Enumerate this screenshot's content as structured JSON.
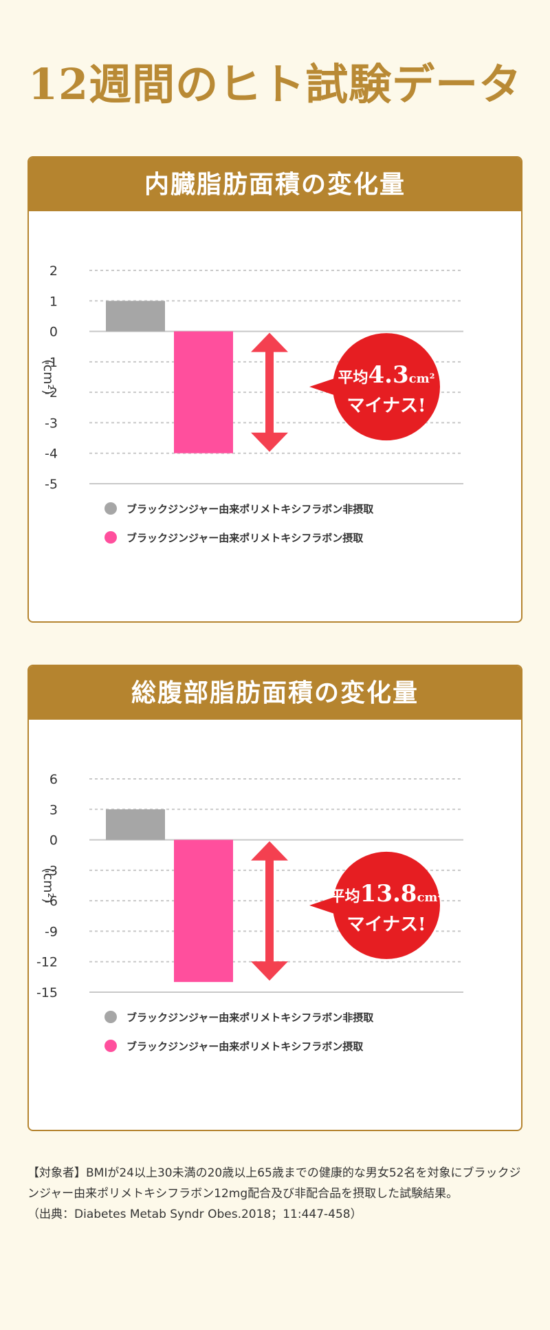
{
  "page": {
    "title": "12週間のヒト試験データ"
  },
  "colors": {
    "gold": "#b5842f",
    "gray_bar": "#a6a6a6",
    "pink_bar": "#ff4f9d",
    "red_callout": "#e61e22",
    "arrow": "#f44050"
  },
  "chart_data": [
    {
      "type": "bar",
      "title": "内臓脂肪面積の変化量",
      "ylabel": "(cm²)",
      "ylim": [
        -5,
        2
      ],
      "yticks": [
        2,
        1,
        0,
        -1,
        -2,
        -3,
        -4,
        -5
      ],
      "grid": true,
      "series": [
        {
          "name": "ブラックジンジャー由来ポリメトキシフラボン非摂取",
          "values": [
            1
          ],
          "color": "#a6a6a6"
        },
        {
          "name": "ブラックジンジャー由来ポリメトキシフラボン摂取",
          "values": [
            -4
          ],
          "color": "#ff4f9d"
        }
      ],
      "callout": {
        "prefix": "平均",
        "value": "4.3",
        "unit": "cm²",
        "line2": "マイナス!"
      },
      "legend_position": "bottom-left"
    },
    {
      "type": "bar",
      "title": "総腹部脂肪面積の変化量",
      "ylabel": "(cm²)",
      "ylim": [
        -15,
        6
      ],
      "yticks": [
        6,
        3,
        0,
        -3,
        -6,
        -9,
        -12,
        -15
      ],
      "grid": true,
      "series": [
        {
          "name": "ブラックジンジャー由来ポリメトキシフラボン非摂取",
          "values": [
            3
          ],
          "color": "#a6a6a6"
        },
        {
          "name": "ブラックジンジャー由来ポリメトキシフラボン摂取",
          "values": [
            -14
          ],
          "color": "#ff4f9d"
        }
      ],
      "callout": {
        "prefix": "平均",
        "value": "13.8",
        "unit": "cm²",
        "line2": "マイナス!"
      },
      "legend_position": "bottom-left"
    }
  ],
  "footnote": {
    "line1": "【対象者】BMIが24以上30未満の20歳以上65歳までの健康的な男女52名を対象にブラックジンジャー由来ポリメトキシフラボン12mg配合及び非配合品を摂取した試験結果。",
    "line2": "（出典：Diabetes Metab Syndr Obes.2018；11:447-458）"
  }
}
